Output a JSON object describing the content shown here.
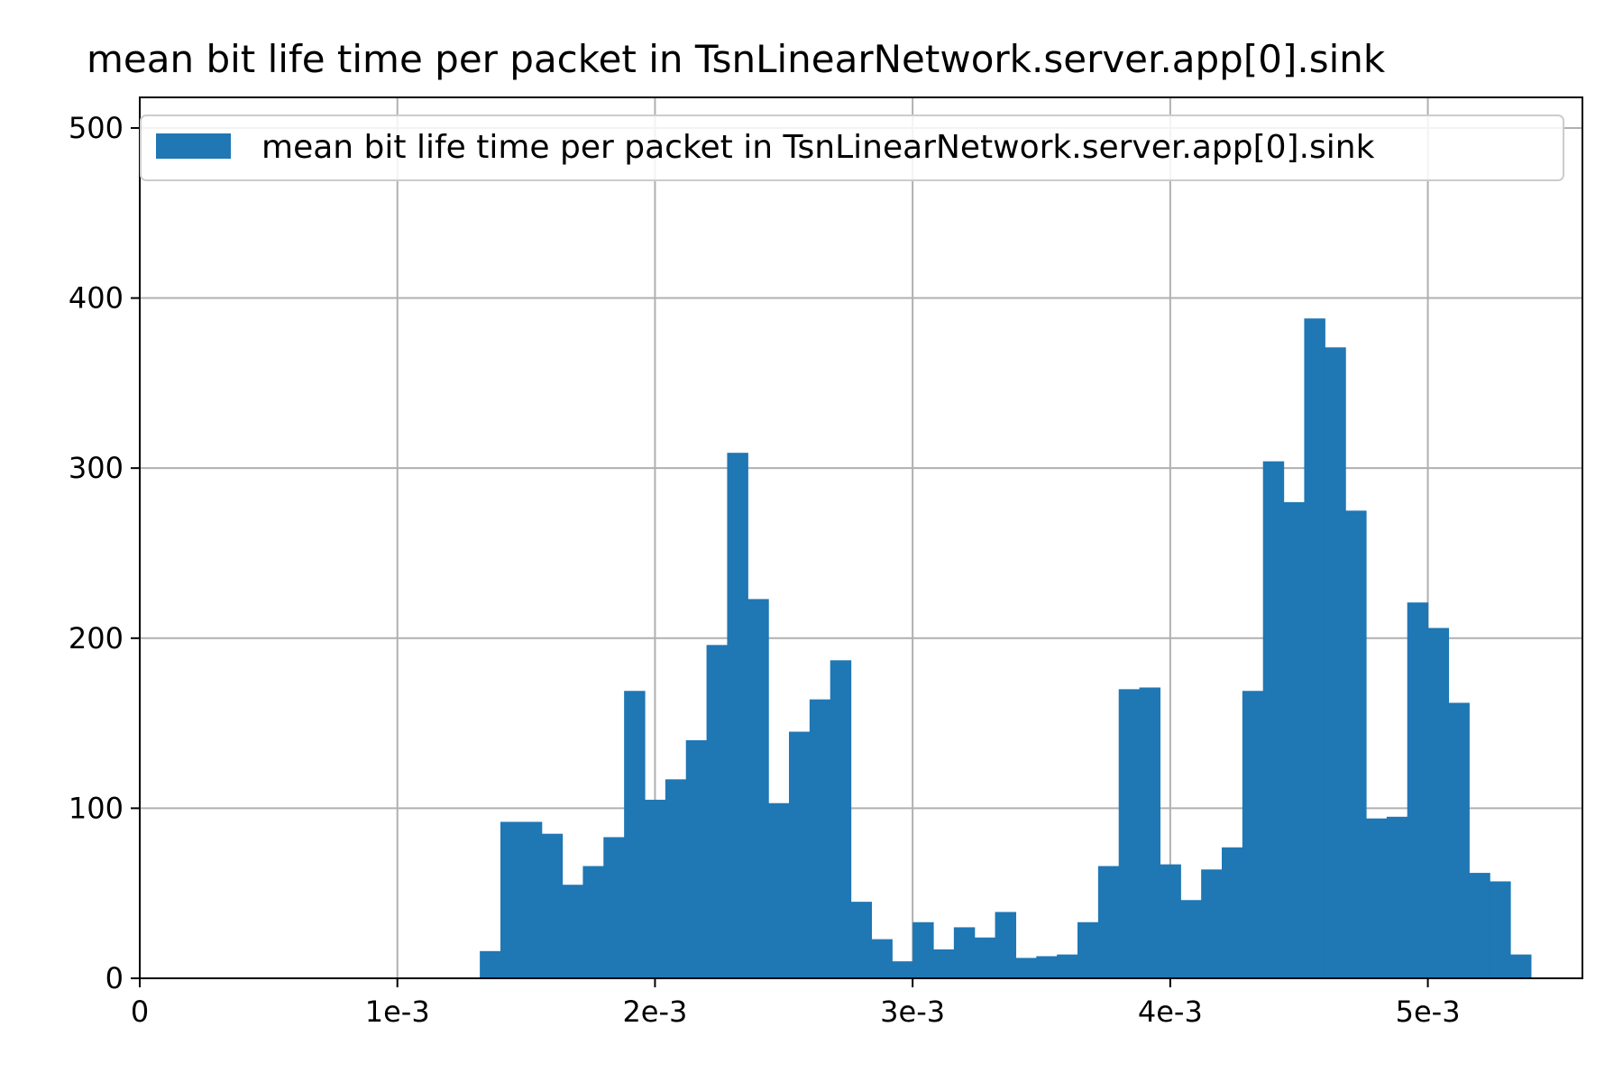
{
  "chart_data": {
    "type": "bar",
    "title": "mean bit life time per packet in TsnLinearNetwork.server.app[0].sink",
    "xlabel": "",
    "ylabel": "",
    "x_tick_values": [
      0,
      0.001,
      0.002,
      0.003,
      0.004,
      0.005
    ],
    "x_tick_labels": [
      "0",
      "1e-3",
      "2e-3",
      "3e-3",
      "4e-3",
      "5e-3"
    ],
    "y_ticks": [
      0,
      100,
      200,
      300,
      400,
      500
    ],
    "xlim": [
      0,
      0.0056
    ],
    "ylim": [
      0,
      518
    ],
    "grid": true,
    "legend_position": "top",
    "bar_color": "#1f77b4",
    "bin_width": 8e-05,
    "series": [
      {
        "name": "mean bit life time per packet in TsnLinearNetwork.server.app[0].sink",
        "bin_starts": [
          0.00132,
          0.0014,
          0.00148,
          0.00156,
          0.00164,
          0.00172,
          0.0018,
          0.00188,
          0.00196,
          0.00204,
          0.00212,
          0.0022,
          0.00228,
          0.00236,
          0.00244,
          0.00252,
          0.0026,
          0.00268,
          0.00276,
          0.00284,
          0.00292,
          0.003,
          0.00308,
          0.00316,
          0.00324,
          0.00332,
          0.0034,
          0.00348,
          0.00356,
          0.00364,
          0.00372,
          0.0038,
          0.00388,
          0.00396,
          0.00404,
          0.00412,
          0.0042,
          0.00428,
          0.00436,
          0.00444,
          0.00452,
          0.0046,
          0.00468,
          0.00476,
          0.00484,
          0.00492,
          0.005,
          0.00508,
          0.00516,
          0.00524,
          0.00532
        ],
        "values": [
          16,
          92,
          92,
          85,
          55,
          66,
          83,
          169,
          105,
          117,
          140,
          196,
          309,
          223,
          103,
          145,
          164,
          187,
          45,
          23,
          10,
          33,
          17,
          30,
          24,
          39,
          12,
          13,
          14,
          33,
          66,
          170,
          171,
          67,
          46,
          64,
          77,
          169,
          304,
          280,
          388,
          371,
          275,
          94,
          95,
          221,
          206,
          162,
          62,
          57,
          14
        ]
      }
    ]
  }
}
